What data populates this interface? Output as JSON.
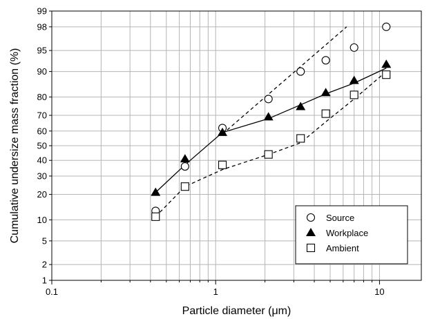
{
  "chart_data": {
    "type": "scatter",
    "xlabel": "Particle diameter (μm)",
    "ylabel": "Cumulative undersize mass fraction (%)",
    "xscale": "log",
    "yscale": "probability",
    "xlim": [
      0.1,
      18
    ],
    "ylim": [
      1,
      99
    ],
    "grid": true,
    "legend_placement": "bottom-right",
    "x_ticks": [
      "0.1",
      "1",
      "10"
    ],
    "y_ticks": [
      "1",
      "2",
      "5",
      "10",
      "20",
      "30",
      "40",
      "50",
      "60",
      "70",
      "80",
      "90",
      "95",
      "98",
      "99"
    ],
    "series": [
      {
        "name": "Source",
        "marker": "open-circle",
        "x": [
          0.43,
          0.65,
          1.1,
          2.1,
          3.3,
          4.7,
          7.0,
          11.0
        ],
        "y": [
          13,
          36,
          62,
          79,
          90,
          93,
          95.5,
          98
        ],
        "fit_line": {
          "style": "dashed",
          "x": [
            1.1,
            6.3
          ],
          "y": [
            58,
            98
          ]
        }
      },
      {
        "name": "Workplace",
        "marker": "filled-triangle",
        "x": [
          0.43,
          0.65,
          1.1,
          2.1,
          3.3,
          4.7,
          7.0,
          11.0
        ],
        "y": [
          21,
          41,
          59,
          69,
          75,
          82,
          87,
          92
        ],
        "fit_line": {
          "style": "solid",
          "x": [
            0.43,
            0.65,
            1.1,
            2.1,
            3.3,
            4.7,
            7.0,
            11.0
          ],
          "y": [
            21,
            37,
            59,
            68,
            76,
            81.5,
            86,
            91
          ]
        }
      },
      {
        "name": "Ambient",
        "marker": "open-square",
        "x": [
          0.43,
          0.65,
          1.1,
          2.1,
          3.3,
          4.7,
          7.0,
          11.0
        ],
        "y": [
          11,
          24,
          37,
          44,
          55,
          71,
          81,
          89
        ],
        "fit_line": {
          "style": "dashed",
          "x": [
            0.43,
            0.65,
            1.1,
            2.1,
            3.3,
            4.7,
            7.0,
            11.0
          ],
          "y": [
            11,
            24,
            34,
            44,
            52,
            66,
            79,
            90
          ]
        }
      }
    ]
  }
}
